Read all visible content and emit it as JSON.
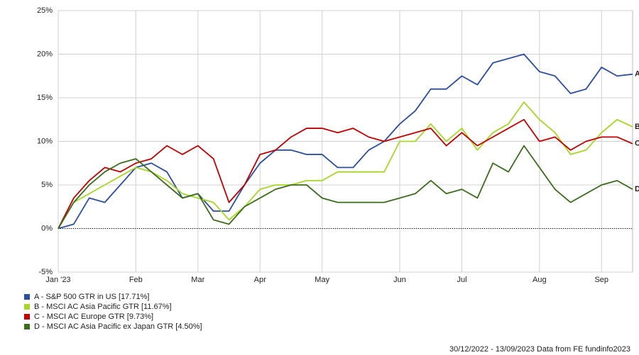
{
  "chart_data": {
    "type": "line",
    "categories": [
      "Jan '23",
      null,
      null,
      null,
      null,
      "Feb",
      null,
      null,
      null,
      "Mar",
      null,
      null,
      null,
      "Apr",
      null,
      null,
      null,
      "May",
      null,
      null,
      null,
      null,
      "Jun",
      null,
      null,
      null,
      "Jul",
      null,
      null,
      null,
      null,
      "Aug",
      null,
      null,
      null,
      "Sep",
      null,
      null
    ],
    "ylim": [
      -5,
      25
    ],
    "yticks": [
      {
        "value": -5,
        "label": "-5%"
      },
      {
        "value": 0,
        "label": "0%"
      },
      {
        "value": 5,
        "label": "5%"
      },
      {
        "value": 10,
        "label": "10%"
      },
      {
        "value": 15,
        "label": "15%"
      },
      {
        "value": 20,
        "label": "20%"
      },
      {
        "value": 25,
        "label": "25%"
      }
    ],
    "grid": true,
    "series": [
      {
        "name": "A - S&P 500 GTR in US [17.71%]",
        "end_label": "A",
        "color": "#2b4f9e",
        "values": [
          0,
          0.5,
          3.5,
          3,
          5,
          7,
          7.5,
          6.5,
          3.5,
          4,
          2,
          2,
          5,
          7.5,
          9,
          9,
          8.5,
          8.5,
          7,
          7,
          9,
          10,
          12,
          13.5,
          16,
          16,
          17.5,
          16.5,
          19,
          19.5,
          20,
          18,
          17.5,
          15.5,
          16,
          18.5,
          17.5,
          17.71
        ]
      },
      {
        "name": "B - MSCI AC Asia Pacific GTR [11.67%]",
        "end_label": "B",
        "color": "#a6d628",
        "values": [
          0,
          3,
          4,
          5,
          6,
          7,
          6.5,
          5.5,
          4,
          3.5,
          3,
          1,
          2.5,
          4.5,
          5,
          5,
          5.5,
          5.5,
          6.5,
          6.5,
          6.5,
          6.5,
          10,
          10,
          12,
          10,
          11.5,
          9,
          11,
          12,
          14.5,
          12.5,
          11,
          8.5,
          9,
          11,
          12.5,
          11.67
        ]
      },
      {
        "name": "C - MSCI AC Europe GTR [9.73%]",
        "end_label": "C",
        "color": "#c00000",
        "values": [
          0,
          3.5,
          5.5,
          7,
          6.5,
          7.5,
          8,
          9.5,
          8.5,
          9.5,
          8,
          3,
          5,
          8.5,
          9,
          10.5,
          11.5,
          11.5,
          11,
          11.5,
          10.5,
          10,
          10.5,
          11,
          11.5,
          9.5,
          11,
          9.5,
          10.5,
          11.5,
          12.5,
          10,
          10.5,
          9,
          10,
          10.5,
          10.5,
          9.73
        ]
      },
      {
        "name": "D - MSCI AC Asia Pacific ex Japan GTR [4.50%]",
        "end_label": "D",
        "color": "#3b6b1c",
        "values": [
          0,
          3,
          5,
          6.5,
          7.5,
          8,
          6.5,
          5,
          3.5,
          4,
          1,
          0.5,
          2.5,
          3.5,
          4.5,
          5,
          5,
          3.5,
          3,
          3,
          3,
          3,
          3.5,
          4,
          5.5,
          4,
          4.5,
          3.5,
          7.5,
          6.5,
          9.5,
          7,
          4.5,
          3,
          4,
          5,
          5.5,
          4.5
        ]
      }
    ],
    "footer": "30/12/2022 - 13/09/2023 Data from FE fundinfo2023"
  }
}
